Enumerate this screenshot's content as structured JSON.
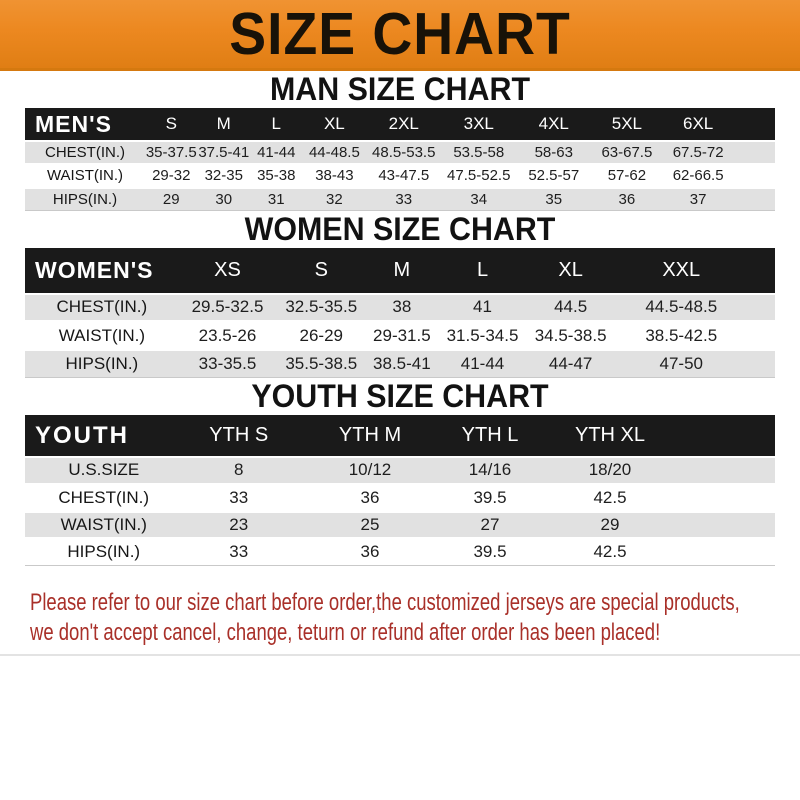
{
  "banner": {
    "title": "SIZE CHART"
  },
  "sections": [
    {
      "heading": "MAN SIZE CHART",
      "table": {
        "name_label": "MEN'S",
        "columns": [
          "S",
          "M",
          "L",
          "XL",
          "2XL",
          "3XL",
          "4XL",
          "5XL",
          "6XL"
        ],
        "rows": [
          {
            "label": "CHEST(IN.)",
            "values": [
              "35-37.5",
              "37.5-41",
              "41-44",
              "44-48.5",
              "48.5-53.5",
              "53.5-58",
              "58-63",
              "63-67.5",
              "67.5-72"
            ]
          },
          {
            "label": "WAIST(IN.)",
            "values": [
              "29-32",
              "32-35",
              "35-38",
              "38-43",
              "43-47.5",
              "47.5-52.5",
              "52.5-57",
              "57-62",
              "62-66.5"
            ]
          },
          {
            "label": "HIPS(IN.)",
            "values": [
              "29",
              "30",
              "31",
              "32",
              "33",
              "34",
              "35",
              "36",
              "37"
            ]
          }
        ]
      }
    },
    {
      "heading": "WOMEN SIZE CHART",
      "table": {
        "name_label": "WOMEN'S",
        "columns": [
          "XS",
          "S",
          "M",
          "L",
          "XL",
          "XXL"
        ],
        "rows": [
          {
            "label": "CHEST(IN.)",
            "values": [
              "29.5-32.5",
              "32.5-35.5",
              "38",
              "41",
              "44.5",
              "44.5-48.5"
            ]
          },
          {
            "label": "WAIST(IN.)",
            "values": [
              "23.5-26",
              "26-29",
              "29-31.5",
              "31.5-34.5",
              "34.5-38.5",
              "38.5-42.5"
            ]
          },
          {
            "label": "HIPS(IN.)",
            "values": [
              "33-35.5",
              "35.5-38.5",
              "38.5-41",
              "41-44",
              "44-47",
              "47-50"
            ]
          }
        ]
      }
    },
    {
      "heading": "YOUTH SIZE CHART",
      "table": {
        "name_label": "YOUTH",
        "columns": [
          "YTH S",
          "YTH M",
          "YTH L",
          "YTH XL"
        ],
        "rows": [
          {
            "label": "U.S.SIZE",
            "values": [
              "8",
              "10/12",
              "14/16",
              "18/20"
            ]
          },
          {
            "label": "CHEST(IN.)",
            "values": [
              "33",
              "36",
              "39.5",
              "42.5"
            ]
          },
          {
            "label": "WAIST(IN.)",
            "values": [
              "23",
              "25",
              "27",
              "29"
            ]
          },
          {
            "label": "HIPS(IN.)",
            "values": [
              "33",
              "36",
              "39.5",
              "42.5"
            ]
          }
        ]
      }
    }
  ],
  "disclaimer": {
    "line1": "Please refer to our size chart before order,the customized jerseys are special products,",
    "line2": "we don't accept cancel, change, teturn or refund after order has been placed!"
  },
  "colors": {
    "banner_bg": "#EC8820",
    "header_bar_bg": "#1a1a1a",
    "row_alt_bg": "#e1e1e1",
    "disclaimer_red": "#A93029"
  }
}
